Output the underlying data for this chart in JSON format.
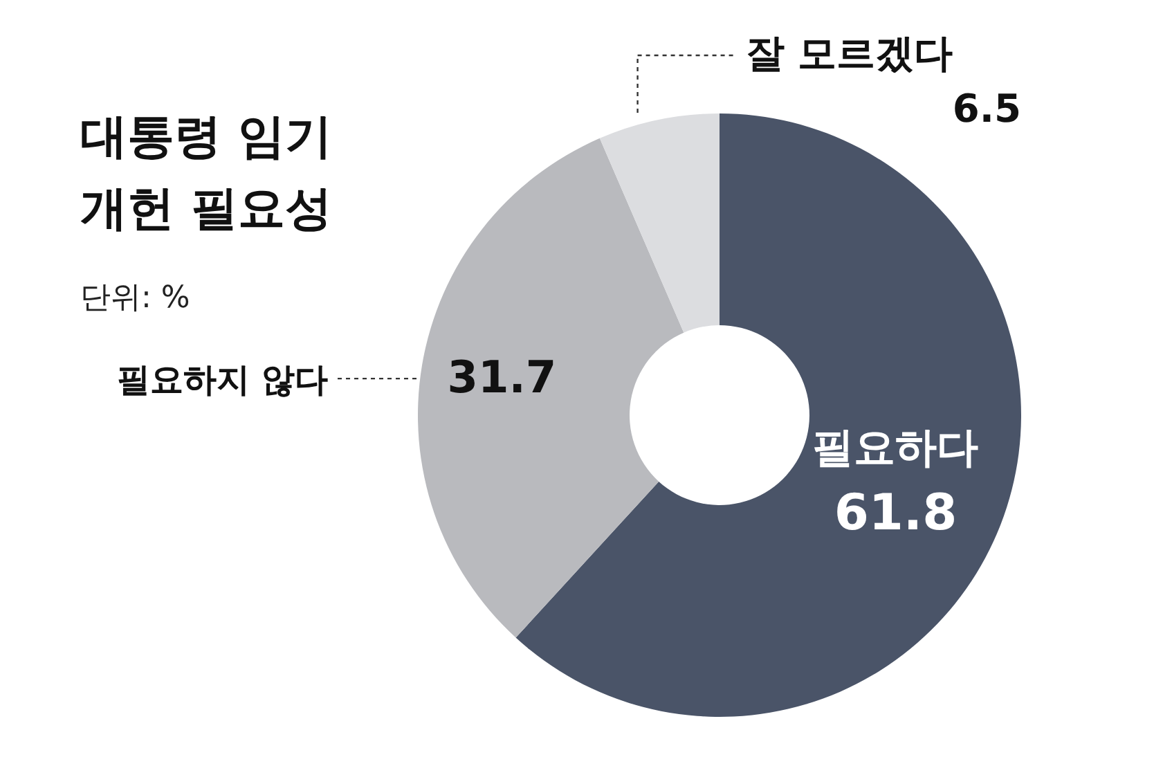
{
  "chart_data": {
    "type": "donut",
    "title": "대통령 임기\n개헌 필요성",
    "subtitle": "단위: %",
    "categories": [
      "필요하다",
      "필요하지 않다",
      "잘 모르겠다"
    ],
    "values": [
      61.8,
      31.7,
      6.5
    ],
    "colors": [
      "#4a5468",
      "#b9babe",
      "#dcdde0"
    ],
    "data_labels": true,
    "legend": false
  }
}
